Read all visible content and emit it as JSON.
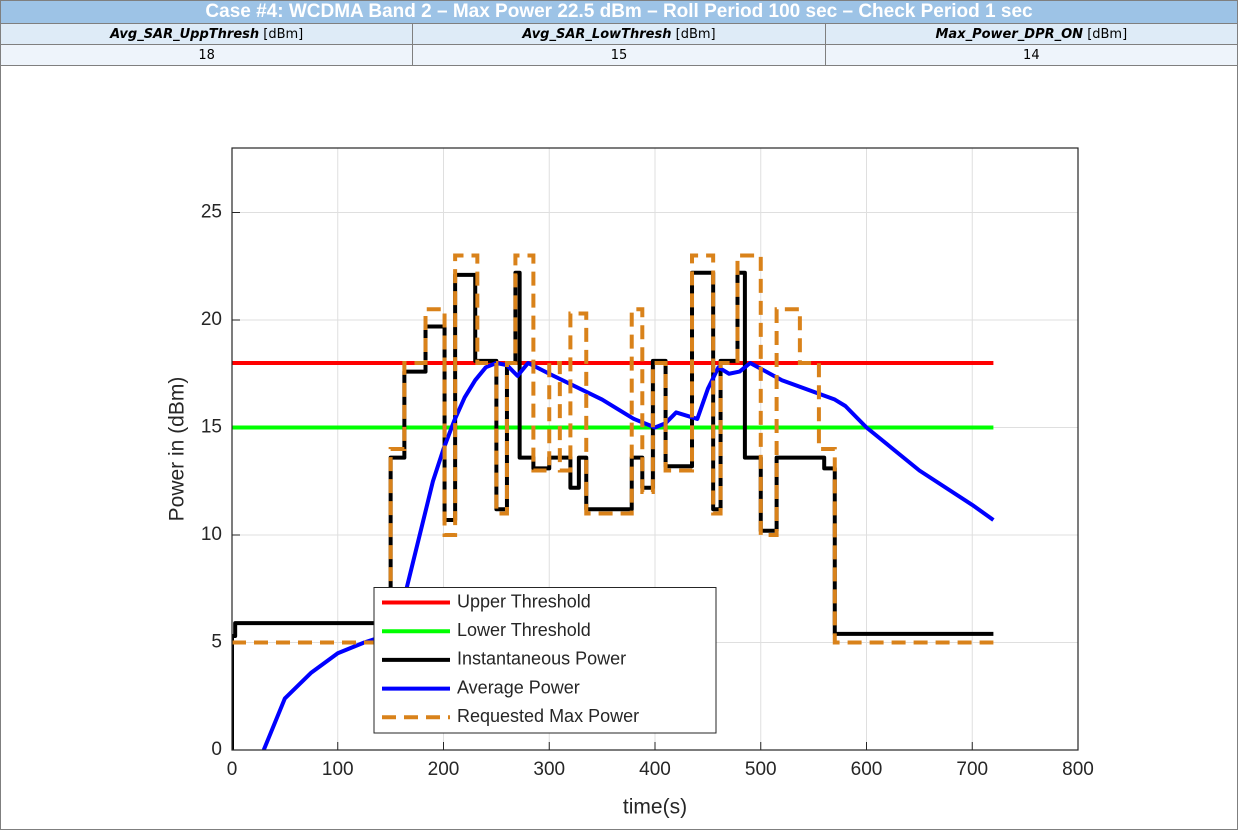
{
  "table": {
    "title": "Case #4: WCDMA Band 2 – Max Power 22.5 dBm – Roll Period 100 sec – Check Period 1 sec",
    "headers": [
      {
        "name": "Avg_SAR_UppThresh",
        "unit": "[dBm]"
      },
      {
        "name": "Avg_SAR_LowThresh",
        "unit": "[dBm]"
      },
      {
        "name": "Max_Power_DPR_ON",
        "unit": "[dBm]"
      }
    ],
    "values": [
      18,
      15,
      14
    ]
  },
  "chart_data": {
    "type": "line",
    "xlabel": "time(s)",
    "ylabel": "Power in (dBm)",
    "xlim": [
      0,
      800
    ],
    "xticks": [
      0,
      100,
      200,
      300,
      400,
      500,
      600,
      700,
      800
    ],
    "ylim": [
      0,
      28
    ],
    "yticks": [
      0,
      5,
      10,
      15,
      20,
      25
    ],
    "grid": true,
    "legend": "lower center",
    "series": [
      {
        "name": "Upper Threshold",
        "color": "#ff0000",
        "x": [
          0,
          720
        ],
        "values": [
          18,
          18
        ]
      },
      {
        "name": "Lower Threshold",
        "color": "#00ff00",
        "x": [
          0,
          720
        ],
        "values": [
          15,
          15
        ]
      },
      {
        "name": "Instantaneous Power",
        "color": "#000000",
        "x": [
          0,
          0,
          3,
          3,
          150,
          150,
          163,
          163,
          183,
          183,
          201,
          201,
          211,
          211,
          230,
          230,
          250,
          250,
          260,
          260,
          268,
          268,
          272,
          272,
          285,
          285,
          300,
          300,
          320,
          320,
          328,
          328,
          335,
          335,
          378,
          378,
          388,
          388,
          398,
          398,
          410,
          410,
          435,
          435,
          455,
          455,
          462,
          462,
          478,
          478,
          485,
          485,
          500,
          500,
          515,
          515,
          560,
          560,
          570,
          570,
          720
        ],
        "values": [
          0,
          5.3,
          5.3,
          5.9,
          5.9,
          13.6,
          13.6,
          17.6,
          17.6,
          19.7,
          19.7,
          10.7,
          10.7,
          22.1,
          22.1,
          18.1,
          18.1,
          11.2,
          11.2,
          18,
          18,
          22.2,
          22.2,
          13.6,
          13.6,
          13.1,
          13.1,
          13.6,
          13.6,
          12.2,
          12.2,
          13.6,
          13.6,
          11.2,
          11.2,
          13.6,
          13.6,
          12.2,
          12.2,
          18.1,
          18.1,
          13.2,
          13.2,
          22.2,
          22.2,
          11.2,
          11.2,
          18.1,
          18.1,
          22.2,
          22.2,
          13.6,
          13.6,
          10.2,
          10.2,
          13.6,
          13.6,
          13.1,
          13.1,
          5.4,
          5.4
        ]
      },
      {
        "name": "Average Power",
        "color": "#0000ff",
        "x": [
          30,
          50,
          75,
          100,
          125,
          150,
          160,
          170,
          180,
          190,
          200,
          210,
          220,
          230,
          240,
          250,
          260,
          270,
          280,
          300,
          350,
          380,
          400,
          410,
          420,
          440,
          450,
          460,
          470,
          480,
          490,
          520,
          570,
          580,
          600,
          650,
          700,
          720
        ],
        "values": [
          0,
          2.4,
          3.6,
          4.5,
          5,
          5.4,
          6.5,
          8.5,
          10.5,
          12.5,
          14,
          15.3,
          16.4,
          17.2,
          17.8,
          18,
          17.9,
          17.4,
          18,
          17.5,
          16.3,
          15.4,
          15,
          15.2,
          15.7,
          15.4,
          16.8,
          17.8,
          17.5,
          17.6,
          18,
          17.2,
          16.3,
          16,
          15,
          13,
          11.4,
          10.7
        ]
      },
      {
        "name": "Requested Max Power",
        "color": "#d9821a",
        "dashed": true,
        "x": [
          0,
          150,
          150,
          163,
          163,
          183,
          183,
          201,
          201,
          211,
          211,
          232,
          232,
          250,
          250,
          260,
          260,
          268,
          268,
          285,
          285,
          300,
          300,
          310,
          310,
          320,
          320,
          335,
          335,
          378,
          378,
          388,
          388,
          398,
          398,
          410,
          410,
          435,
          435,
          455,
          455,
          462,
          462,
          478,
          478,
          500,
          500,
          515,
          515,
          537,
          537,
          555,
          555,
          570,
          570,
          720
        ],
        "values": [
          5,
          5,
          14,
          14,
          18,
          18,
          20.5,
          20.5,
          10,
          10,
          23,
          23,
          18,
          18,
          11,
          11,
          18,
          18,
          23,
          23,
          13,
          13,
          18,
          18,
          13,
          13,
          20.3,
          20.3,
          11,
          11,
          20.5,
          20.5,
          12,
          12,
          18,
          18,
          13,
          13,
          23,
          23,
          11,
          11,
          18,
          18,
          23,
          23,
          10,
          10,
          20.5,
          20.5,
          18,
          18,
          14,
          14,
          5,
          5
        ]
      }
    ]
  }
}
